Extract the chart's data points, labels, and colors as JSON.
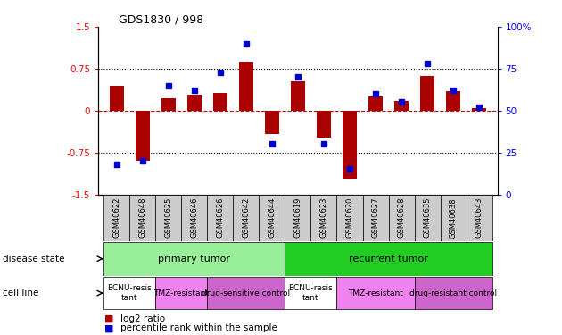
{
  "title": "GDS1830 / 998",
  "samples": [
    "GSM40622",
    "GSM40648",
    "GSM40625",
    "GSM40646",
    "GSM40626",
    "GSM40642",
    "GSM40644",
    "GSM40619",
    "GSM40623",
    "GSM40620",
    "GSM40627",
    "GSM40628",
    "GSM40635",
    "GSM40638",
    "GSM40643"
  ],
  "log2_ratio": [
    0.45,
    -0.9,
    0.22,
    0.28,
    0.32,
    0.88,
    -0.42,
    0.52,
    -0.48,
    -1.22,
    0.26,
    0.18,
    0.62,
    0.35,
    0.05
  ],
  "percentile": [
    18,
    20,
    65,
    62,
    73,
    90,
    30,
    70,
    30,
    15,
    60,
    55,
    78,
    62,
    52
  ],
  "disease_state_groups": [
    {
      "label": "primary tumor",
      "start": 0,
      "end": 7,
      "color": "#99EE99"
    },
    {
      "label": "recurrent tumor",
      "start": 7,
      "end": 15,
      "color": "#22CC22"
    }
  ],
  "cell_line_groups": [
    {
      "label": "BCNU-resis\ntant",
      "start": 0,
      "end": 2,
      "color": "#FFFFFF"
    },
    {
      "label": "TMZ-resistant",
      "start": 2,
      "end": 4,
      "color": "#EE82EE"
    },
    {
      "label": "drug-sensitive control",
      "start": 4,
      "end": 7,
      "color": "#CC66CC"
    },
    {
      "label": "BCNU-resis\ntant",
      "start": 7,
      "end": 9,
      "color": "#FFFFFF"
    },
    {
      "label": "TMZ-resistant",
      "start": 9,
      "end": 12,
      "color": "#EE82EE"
    },
    {
      "label": "drug-resistant control",
      "start": 12,
      "end": 15,
      "color": "#CC66CC"
    }
  ],
  "ylim_left": [
    -1.5,
    1.5
  ],
  "ylim_right": [
    0,
    100
  ],
  "yticks_left": [
    -1.5,
    -0.75,
    0,
    0.75,
    1.5
  ],
  "yticks_right": [
    0,
    25,
    50,
    75,
    100
  ],
  "bar_color": "#AA0000",
  "dot_color": "#0000CC",
  "hline_color": "#CC0000",
  "dotline_75": 0.75,
  "dotline_n75": -0.75,
  "bg_color": "#FFFFFF",
  "label_disease_state": "disease state",
  "label_cell_line": "cell line",
  "legend_log2": "log2 ratio",
  "legend_pct": "percentile rank within the sample"
}
